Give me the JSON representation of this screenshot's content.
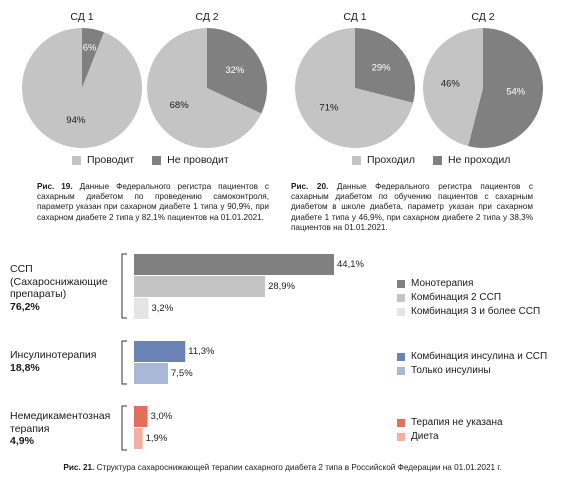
{
  "chart_data": [
    {
      "type": "pie",
      "figure": "fig19",
      "charts": [
        {
          "title": "СД 1",
          "slices": [
            {
              "label": "Проводит",
              "value": 94,
              "text": "94%"
            },
            {
              "label": "Не проводит",
              "value": 6,
              "text": "6%"
            }
          ]
        },
        {
          "title": "СД 2",
          "slices": [
            {
              "label": "Проводит",
              "value": 68,
              "text": "68%"
            },
            {
              "label": "Не проводит",
              "value": 32,
              "text": "32%"
            }
          ]
        }
      ],
      "legend": [
        {
          "label": "Проводит",
          "color": "#c4c4c4"
        },
        {
          "label": "Не проводит",
          "color": "#808080"
        }
      ]
    },
    {
      "type": "pie",
      "figure": "fig20",
      "charts": [
        {
          "title": "СД 1",
          "slices": [
            {
              "label": "Проходил",
              "value": 71,
              "text": "71%"
            },
            {
              "label": "Не проходил",
              "value": 29,
              "text": "29%"
            }
          ]
        },
        {
          "title": "СД 2",
          "slices": [
            {
              "label": "Проходил",
              "value": 46,
              "text": "46%"
            },
            {
              "label": "Не проходил",
              "value": 54,
              "text": "54%"
            }
          ]
        }
      ],
      "legend": [
        {
          "label": "Проходил",
          "color": "#c4c4c4"
        },
        {
          "label": "Не проходил",
          "color": "#808080"
        }
      ]
    },
    {
      "type": "bar",
      "orientation": "horizontal",
      "figure": "fig21",
      "groups": [
        {
          "label_lines": [
            "ССП",
            "(Сахароснижающие",
            "препараты)"
          ],
          "total": "76,2%",
          "bars": [
            {
              "name": "Монотерапия",
              "value": 44.1,
              "text": "44,1%",
              "color": "#808080"
            },
            {
              "name": "Комбинация 2 ССП",
              "value": 28.9,
              "text": "28,9%",
              "color": "#c4c4c4"
            },
            {
              "name": "Комбинация 3 и более ССП",
              "value": 3.2,
              "text": "3,2%",
              "color": "#e4e4e4"
            }
          ]
        },
        {
          "label_lines": [
            "Инсулинотерапия"
          ],
          "total": "18,8%",
          "bars": [
            {
              "name": "Комбинация инсулина и ССП",
              "value": 11.3,
              "text": "11,3%",
              "color": "#6a82b4"
            },
            {
              "name": "Только инсулины",
              "value": 7.5,
              "text": "7,5%",
              "color": "#a8b8d6"
            }
          ]
        },
        {
          "label_lines": [
            "Немедикаментозная",
            "терапия"
          ],
          "total": "4,9%",
          "bars": [
            {
              "name": "Терапия не указана",
              "value": 3.0,
              "text": "3,0%",
              "color": "#e0705a"
            },
            {
              "name": "Диета",
              "value": 1.9,
              "text": "1,9%",
              "color": "#f0b0a2"
            }
          ]
        }
      ]
    }
  ],
  "captions": {
    "fig19_bold": "Рис. 19.",
    "fig19_text": "Данные Федерального регистра пациентов с сахарным диабетом по проведению самоконтроля, параметр указан при сахарном диабете 1 типа у 90,9%, при сахарном диабете 2 типа у 82,1% пациентов на 01.01.2021.",
    "fig20_bold": "Рис. 20.",
    "fig20_text": "Данные Федерального регистра пациентов с сахарным диабетом по обучению пациентов с сахарным диабетом в школе диабета, параметр указан при сахарном диабете 1 типа у 46,9%, при сахарном диабете 2 типа у 38,3% пациентов на 01.01.2021.",
    "fig21_bold": "Рис. 21.",
    "fig21_text": "Структура сахароснижающей терапии сахарного диабета 2 типа в Российской Федерации на 01.01.2021 г."
  }
}
